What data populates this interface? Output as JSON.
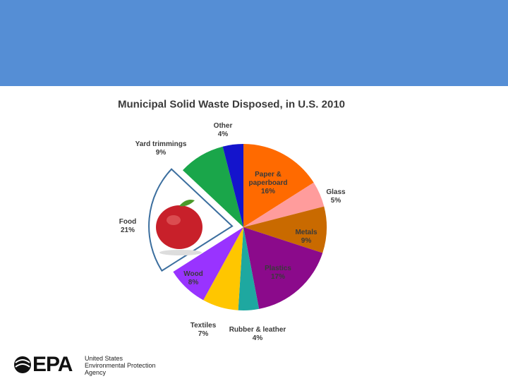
{
  "chart_data": {
    "type": "pie",
    "title": "Municipal Solid Waste Disposed, in U.S.  2010",
    "categories": [
      "Paper & paperboard",
      "Glass",
      "Metals",
      "Plastics",
      "Rubber & leather",
      "Textiles",
      "Wood",
      "Food",
      "Yard trimmings",
      "Other"
    ],
    "values": [
      16,
      5,
      9,
      17,
      4,
      7,
      8,
      21,
      9,
      4
    ],
    "value_labels": [
      "16%",
      "5%",
      "9%",
      "17%",
      "4%",
      "7%",
      "8%",
      "21%",
      "9%",
      "4%"
    ],
    "colors": [
      "#ff6a00",
      "#ff9c9c",
      "#c96a00",
      "#8b0a8b",
      "#1ea8a0",
      "#ffc600",
      "#9933ff",
      "#ffffff",
      "#1aa64a",
      "#1414cc"
    ],
    "exploded": "Food"
  },
  "logo": {
    "mark": "EPA",
    "lines": [
      "United States",
      "Environmental Protection",
      "Agency"
    ]
  }
}
